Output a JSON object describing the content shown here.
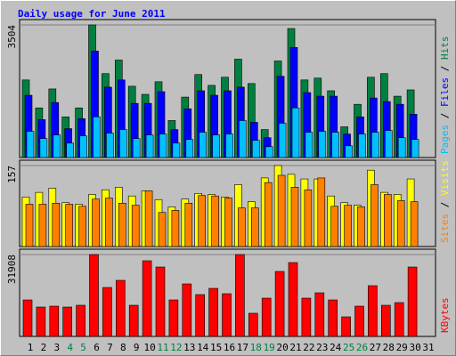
{
  "chart_data": [
    {
      "type": "bar",
      "title": "Daily usage for June 2011",
      "separator": " / ",
      "ylim": [
        0,
        3504
      ],
      "yticks": [
        3504
      ],
      "series": [
        {
          "name": "Pages",
          "color": "#00c0ff",
          "values": [
            691,
            501,
            596,
            381,
            572,
            1073,
            644,
            739,
            501,
            596,
            620,
            381,
            477,
            668,
            596,
            620,
            977,
            453,
            286,
            906,
            1311,
            668,
            691,
            668,
            310,
            620,
            668,
            715,
            524,
            477,
            null
          ]
        },
        {
          "name": "Files",
          "color": "#0000ff",
          "values": [
            1645,
            1001,
            1454,
            763,
            1025,
            2813,
            1860,
            2050,
            1430,
            1430,
            1740,
            739,
            1287,
            1764,
            1645,
            1764,
            1860,
            930,
            524,
            2146,
            2908,
            1716,
            1621,
            1621,
            620,
            1073,
            1573,
            1478,
            1407,
            1144,
            null
          ]
        },
        {
          "name": "Hits",
          "color": "#008040",
          "values": [
            2050,
            1311,
            1812,
            1073,
            1311,
            3504,
            2217,
            2575,
            1883,
            1669,
            2003,
            977,
            1597,
            2193,
            1907,
            2122,
            2599,
            1955,
            739,
            2551,
            3409,
            2050,
            2098,
            1764,
            811,
            1407,
            2122,
            2217,
            1621,
            1788,
            null
          ]
        }
      ]
    },
    {
      "type": "bar",
      "separator": " / ",
      "ylim": [
        0,
        157
      ],
      "yticks": [
        157
      ],
      "series": [
        {
          "name": "Sites",
          "color": "#ff8000",
          "values": [
            82,
            82,
            84,
            82,
            78,
            92,
            94,
            84,
            80,
            108,
            66,
            70,
            84,
            99,
            98,
            94,
            75,
            75,
            124,
            138,
            115,
            110,
            133,
            78,
            80,
            77,
            120,
            101,
            89,
            87,
            null
          ]
        },
        {
          "name": "Visits",
          "color": "#ffff00",
          "values": [
            96,
            105,
            113,
            85,
            82,
            101,
            110,
            115,
            98,
            108,
            91,
            77,
            92,
            103,
            101,
            96,
            120,
            87,
            133,
            157,
            140,
            131,
            131,
            98,
            85,
            80,
            148,
            105,
            101,
            131,
            null
          ]
        }
      ]
    },
    {
      "type": "bar",
      "ylim": [
        0,
        31908
      ],
      "yticks": [
        31908
      ],
      "categories": [
        "1",
        "2",
        "3",
        "4",
        "5",
        "6",
        "7",
        "8",
        "9",
        "10",
        "11",
        "12",
        "13",
        "14",
        "15",
        "16",
        "17",
        "18",
        "19",
        "20",
        "21",
        "22",
        "23",
        "24",
        "25",
        "26",
        "27",
        "28",
        "29",
        "30",
        "31"
      ],
      "weekends": [
        3,
        4,
        10,
        11,
        17,
        18,
        24,
        25
      ],
      "weekday_color": "#000000",
      "weekend_color": "#008040",
      "series": [
        {
          "name": "KBytes",
          "color": "#ff0000",
          "values": [
            14219,
            11444,
            11791,
            11444,
            12138,
            31908,
            19074,
            21848,
            12138,
            29478,
            27050,
            14219,
            20461,
            16300,
            18727,
            16646,
            31908,
            9017,
            14912,
            25316,
            28784,
            14912,
            16993,
            14219,
            7630,
            11791,
            19768,
            12138,
            13178,
            27050,
            null
          ]
        }
      ]
    }
  ]
}
